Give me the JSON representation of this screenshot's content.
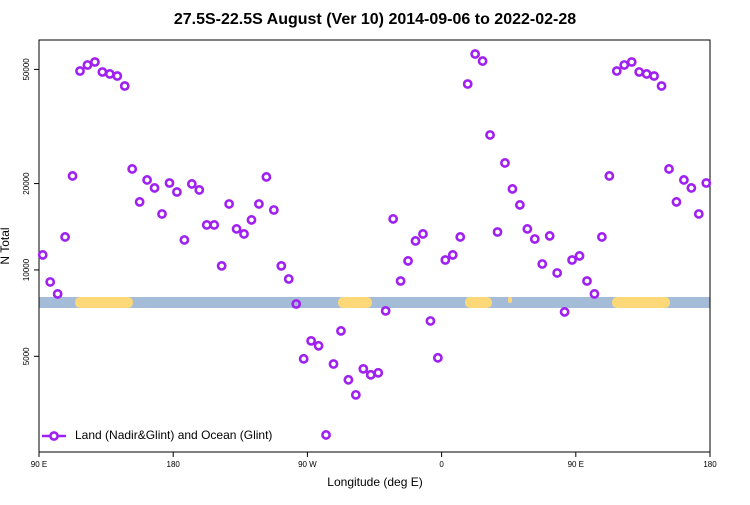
{
  "chart_data": {
    "type": "scatter",
    "title": "27.5S-22.5S August (Ver 10)   2014-09-06 to 2022-02-28",
    "xlabel": "Longitude (deg E)",
    "ylabel": "N Total",
    "ylog": true,
    "legend": "lower left",
    "xlim": [
      90,
      540
    ],
    "ylim": [
      2320,
      63300
    ],
    "xticks": [
      {
        "value": 90,
        "label": "90 E"
      },
      180,
      {
        "value": 270,
        "label": "90 W"
      },
      {
        "value": 360,
        "label": "0"
      },
      {
        "value": 450,
        "label": "90 E"
      },
      {
        "value": 540,
        "label": "180"
      }
    ],
    "yticks": [
      5000,
      10000,
      20000,
      50000
    ],
    "x": [
      92.5,
      97.5,
      102.5,
      107.5,
      112.5,
      117.5,
      122.5,
      127.5,
      132.5,
      137.5,
      142.5,
      147.5,
      152.5,
      157.5,
      162.5,
      167.5,
      172.5,
      177.5,
      182.5,
      187.5,
      192.5,
      197.5,
      202.5,
      207.5,
      212.5,
      217.5,
      222.5,
      227.5,
      232.5,
      237.5,
      242.5,
      247.5,
      252.5,
      257.5,
      262.5,
      267.5,
      272.5,
      277.5,
      282.5,
      287.5,
      292.5,
      297.5,
      302.5,
      307.5,
      312.5,
      317.5,
      322.5,
      327.5,
      332.5,
      337.5,
      342.5,
      347.5,
      352.5,
      357.5,
      362.5,
      367.5,
      372.5,
      377.5,
      382.5,
      387.5,
      392.5,
      397.5,
      402.5,
      407.5,
      412.5,
      417.5,
      422.5,
      427.5,
      432.5,
      437.5,
      442.5,
      447.5,
      452.5,
      457.5,
      462.5,
      467.5,
      472.5,
      477.5,
      482.5,
      487.5,
      492.5,
      497.5,
      502.5,
      507.5,
      512.5,
      517.5,
      522.5,
      527.5,
      532.5,
      537.5
    ],
    "series": [
      {
        "name": "Land (Nadir&Glint) and Ocean (Glint)",
        "color": "#a020f0",
        "values": [
          11280,
          9080,
          8250,
          13030,
          21260,
          49350,
          51800,
          53050,
          48970,
          48200,
          47420,
          43760,
          22490,
          17260,
          20590,
          19310,
          15670,
          20090,
          18690,
          12720,
          19940,
          19000,
          14350,
          14350,
          10330,
          16980,
          13900,
          13350,
          14940,
          16980,
          21090,
          16180,
          10330,
          9300,
          7610,
          4900,
          5660,
          5440,
          2660,
          4700,
          6130,
          4140,
          3670,
          4520,
          4310,
          4380,
          7200,
          15060,
          9150,
          10750,
          12620,
          13350,
          6640,
          4940,
          10830,
          11280,
          13030,
          44460,
          56560,
          53450,
          29540,
          13560,
          23600,
          19160,
          16850,
          13900,
          12820,
          10490,
          13140,
          9760,
          7140,
          10830,
          11190,
          9150,
          8250,
          13030,
          21260,
          49350,
          51800,
          53050,
          48970,
          48200,
          47420,
          43760,
          22490,
          17260,
          20590,
          19310,
          15670,
          20090
        ]
      }
    ]
  }
}
